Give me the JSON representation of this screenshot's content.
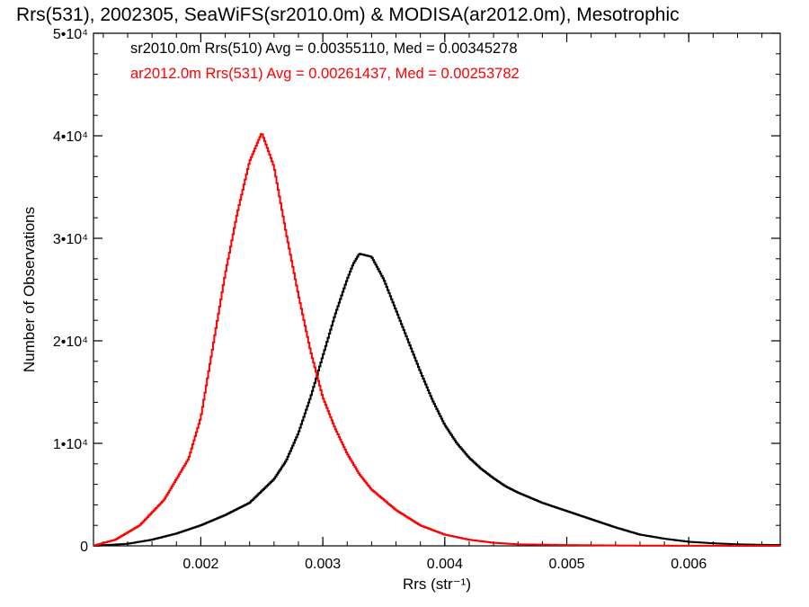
{
  "chart_data": {
    "type": "line",
    "title": "Rrs(531), 2002305, SeaWiFS(sr2010.0m) & MODISA(ar2012.0m), Mesotrophic",
    "xlabel": "Rrs (str⁻¹)",
    "ylabel": "Number of Observations",
    "xlim": [
      0.00112,
      0.00675
    ],
    "ylim": [
      0,
      50000
    ],
    "x_ticks": [
      {
        "value": 0.002,
        "label": "0.002"
      },
      {
        "value": 0.003,
        "label": "0.003"
      },
      {
        "value": 0.004,
        "label": "0.004"
      },
      {
        "value": 0.005,
        "label": "0.005"
      },
      {
        "value": 0.006,
        "label": "0.006"
      }
    ],
    "y_ticks": [
      {
        "value": 0,
        "label": "0"
      },
      {
        "value": 10000,
        "label": "1•10⁴"
      },
      {
        "value": 20000,
        "label": "2•10⁴"
      },
      {
        "value": 30000,
        "label": "3•10⁴"
      },
      {
        "value": 40000,
        "label": "4•10⁴"
      },
      {
        "value": 50000,
        "label": "5•10⁴"
      }
    ],
    "grid": false,
    "legend": [
      {
        "text": "sr2010.0m Rrs(510) Avg = 0.00355110, Med = 0.00345278",
        "color": "#000000"
      },
      {
        "text": "ar2012.0m Rrs(531) Avg = 0.00261437, Med = 0.00253782",
        "color": "#ff0000"
      }
    ],
    "series": [
      {
        "color": "#000000",
        "style": "step",
        "x": [
          0.00112,
          0.0014,
          0.0016,
          0.0018,
          0.002,
          0.0022,
          0.0024,
          0.0026,
          0.0027,
          0.0028,
          0.0029,
          0.003,
          0.0031,
          0.0032,
          0.00325,
          0.0033,
          0.0034,
          0.0035,
          0.0036,
          0.0037,
          0.0038,
          0.0039,
          0.004,
          0.0041,
          0.0042,
          0.0043,
          0.0044,
          0.0045,
          0.0046,
          0.0048,
          0.005,
          0.0052,
          0.0054,
          0.0056,
          0.0058,
          0.006,
          0.0062,
          0.0064,
          0.0066,
          0.00675
        ],
        "y": [
          0,
          200,
          600,
          1200,
          2000,
          3000,
          4200,
          6500,
          8300,
          11000,
          14500,
          18500,
          22500,
          26000,
          27500,
          28500,
          28200,
          26000,
          23000,
          20000,
          17000,
          14200,
          11800,
          10000,
          8600,
          7500,
          6600,
          5800,
          5200,
          4200,
          3400,
          2600,
          1800,
          1100,
          700,
          400,
          250,
          150,
          100,
          80
        ]
      },
      {
        "color": "#ff0000",
        "style": "step",
        "x": [
          0.00112,
          0.0013,
          0.0015,
          0.0017,
          0.0019,
          0.002,
          0.0021,
          0.0022,
          0.0023,
          0.0024,
          0.0025,
          0.0026,
          0.0027,
          0.0028,
          0.0029,
          0.003,
          0.0031,
          0.0032,
          0.0033,
          0.0034,
          0.0036,
          0.0038,
          0.004,
          0.0042,
          0.0044,
          0.0046,
          0.005,
          0.0055,
          0.006,
          0.00675
        ],
        "y": [
          0,
          600,
          2000,
          4500,
          8500,
          12500,
          19500,
          26500,
          32500,
          37500,
          40300,
          37000,
          30500,
          24500,
          19000,
          14500,
          11500,
          9000,
          7000,
          5500,
          3500,
          2000,
          1100,
          600,
          300,
          150,
          80,
          30,
          10,
          0
        ]
      }
    ]
  }
}
